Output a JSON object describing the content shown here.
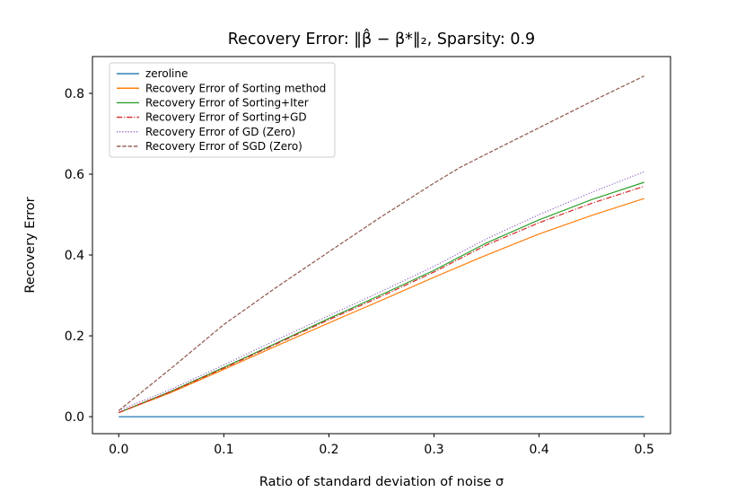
{
  "figure": {
    "background": "#ffffff",
    "spine_color": "#000000"
  },
  "chart_data": {
    "type": "line",
    "title": "Recovery Error: ‖β̂ − β*‖₂, Sparsity: 0.9",
    "xlabel": "Ratio of standard deviation of noise σ",
    "ylabel": "Recovery Error",
    "xlim": [
      -0.025,
      0.525
    ],
    "ylim": [
      -0.042,
      0.891
    ],
    "xticks": [
      0.0,
      0.1,
      0.2,
      0.3,
      0.4,
      0.5
    ],
    "yticks": [
      0.0,
      0.2,
      0.4,
      0.6,
      0.8
    ],
    "grid": false,
    "legend_position": "upper-left",
    "series": [
      {
        "name": "zeroline",
        "color": "#1f77b4",
        "style": "solid",
        "x": [
          0.0,
          0.5
        ],
        "y": [
          0.0,
          0.0
        ]
      },
      {
        "name": "Recovery Error of Sorting method",
        "color": "#ff7f0e",
        "style": "solid",
        "x": [
          0.0,
          0.05,
          0.1,
          0.15,
          0.2,
          0.25,
          0.3,
          0.35,
          0.4,
          0.45,
          0.5
        ],
        "y": [
          0.01,
          0.06,
          0.117,
          0.175,
          0.232,
          0.288,
          0.345,
          0.4,
          0.452,
          0.498,
          0.54
        ]
      },
      {
        "name": "Recovery Error of Sorting+Iter",
        "color": "#2ca02c",
        "style": "solid",
        "x": [
          0.0,
          0.05,
          0.1,
          0.15,
          0.2,
          0.25,
          0.3,
          0.35,
          0.4,
          0.45,
          0.5
        ],
        "y": [
          0.01,
          0.063,
          0.122,
          0.182,
          0.243,
          0.302,
          0.362,
          0.43,
          0.487,
          0.537,
          0.58
        ]
      },
      {
        "name": "Recovery Error of Sorting+GD",
        "color": "#d62728",
        "style": "dashdot",
        "x": [
          0.0,
          0.05,
          0.1,
          0.15,
          0.2,
          0.25,
          0.3,
          0.35,
          0.4,
          0.45,
          0.5
        ],
        "y": [
          0.01,
          0.062,
          0.12,
          0.18,
          0.24,
          0.298,
          0.358,
          0.425,
          0.48,
          0.528,
          0.57
        ]
      },
      {
        "name": "Recovery Error of GD (Zero)",
        "color": "#9467bd",
        "style": "dotted",
        "x": [
          0.0,
          0.05,
          0.1,
          0.15,
          0.2,
          0.25,
          0.3,
          0.35,
          0.4,
          0.45,
          0.5
        ],
        "y": [
          0.015,
          0.068,
          0.128,
          0.19,
          0.25,
          0.31,
          0.372,
          0.44,
          0.5,
          0.555,
          0.606
        ]
      },
      {
        "name": "Recovery Error of SGD (Zero)",
        "color": "#8c564b",
        "style": "dashed",
        "x": [
          0.0,
          0.05,
          0.1,
          0.15,
          0.2,
          0.25,
          0.3,
          0.325,
          0.35,
          0.4,
          0.45,
          0.5
        ],
        "y": [
          0.015,
          0.12,
          0.228,
          0.32,
          0.408,
          0.495,
          0.578,
          0.617,
          0.65,
          0.715,
          0.78,
          0.843
        ]
      }
    ]
  }
}
